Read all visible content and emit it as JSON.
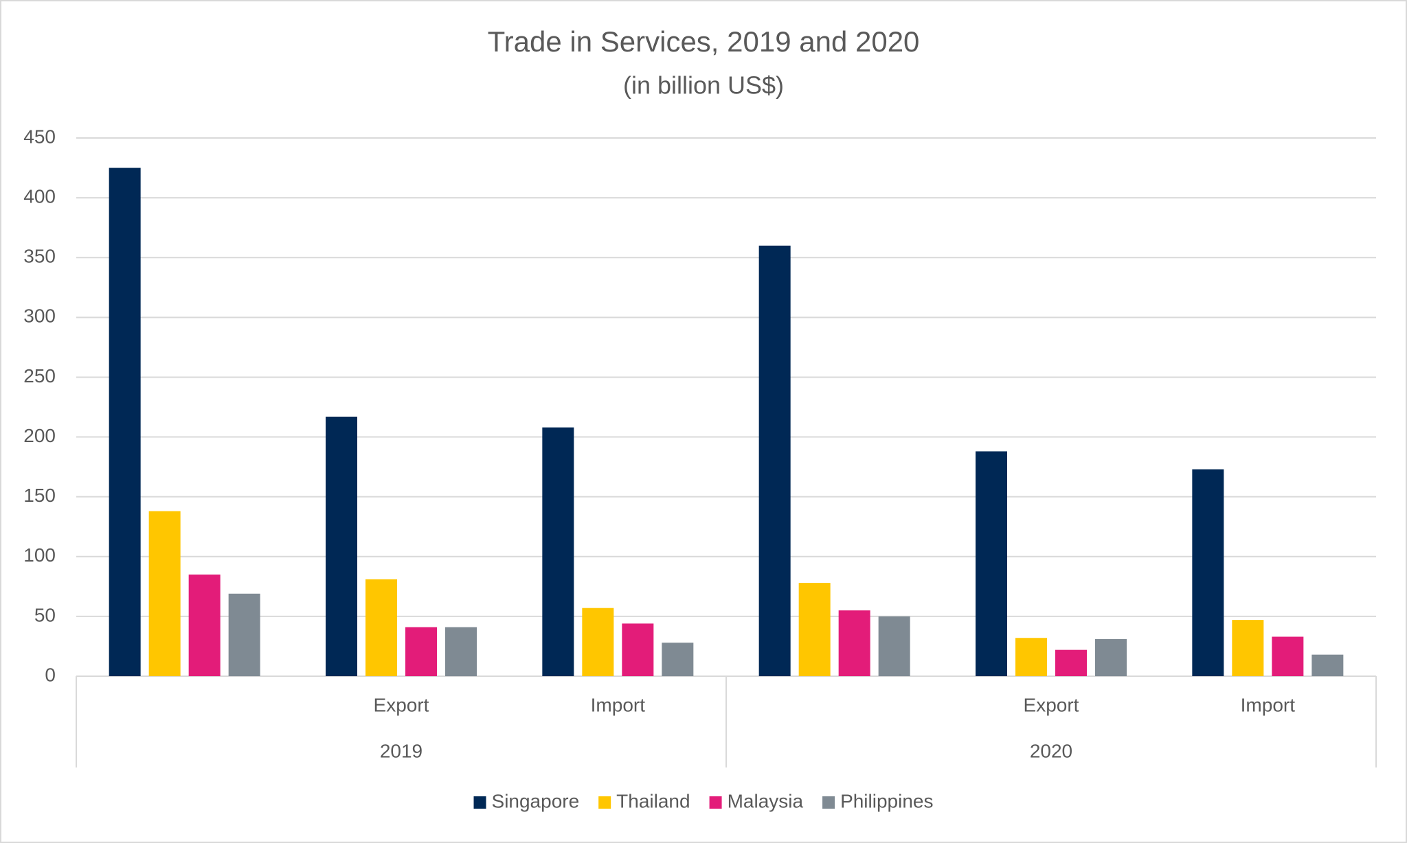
{
  "chart_data": {
    "type": "bar",
    "title": "Trade in Services, 2019 and 2020",
    "subtitle": "(in billion US$)",
    "categories": [
      null,
      "Export",
      "Import",
      null,
      "Export",
      "Import"
    ],
    "group_labels": [
      "2019",
      "2020"
    ],
    "series": [
      {
        "name": "Singapore",
        "color": "#002855",
        "values": [
          425,
          217,
          208,
          360,
          188,
          173
        ]
      },
      {
        "name": "Thailand",
        "color": "#ffc600",
        "values": [
          138,
          81,
          57,
          78,
          32,
          47
        ]
      },
      {
        "name": "Malaysia",
        "color": "#e31c79",
        "values": [
          85,
          41,
          44,
          55,
          22,
          33
        ]
      },
      {
        "name": "Philippines",
        "color": "#7f8a93",
        "values": [
          69,
          41,
          28,
          50,
          31,
          18
        ]
      }
    ],
    "ylim": [
      0,
      450
    ],
    "yticks": [
      0,
      50,
      100,
      150,
      200,
      250,
      300,
      350,
      400,
      450
    ],
    "grid": true,
    "legend": "bottom"
  }
}
